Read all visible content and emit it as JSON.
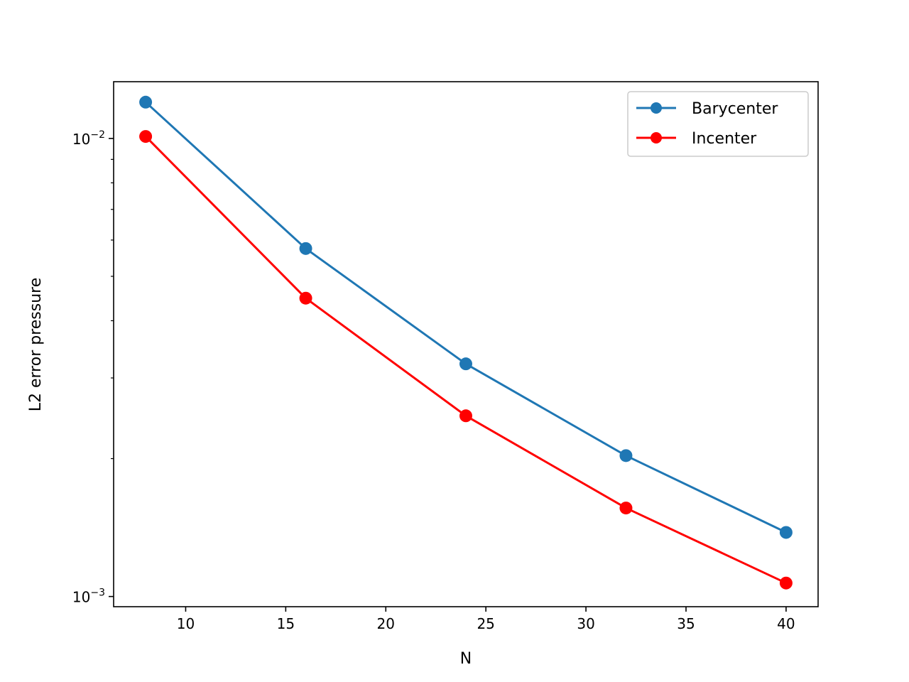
{
  "chart_data": {
    "type": "line",
    "title": "",
    "xlabel": "N",
    "ylabel": "L2 error pressure",
    "x": [
      8,
      16,
      24,
      32,
      40
    ],
    "xlim": [
      6.4,
      41.6
    ],
    "ylim": [
      0.00095,
      0.0133
    ],
    "y_scale": "log",
    "grid": false,
    "legend_position": "top-right",
    "x_ticks": [
      10,
      15,
      20,
      25,
      30,
      35,
      40
    ],
    "y_major_ticks": [
      {
        "value": 0.001,
        "base": "10",
        "exp": "−3"
      },
      {
        "value": 0.01,
        "base": "10",
        "exp": "−2"
      }
    ],
    "y_minor_ticks": [
      0.002,
      0.003,
      0.004,
      0.005,
      0.006,
      0.007,
      0.008,
      0.009
    ],
    "series": [
      {
        "name": "Barycenter",
        "color": "#1f77b4",
        "marker": "circle",
        "values": [
          0.012,
          0.00575,
          0.00322,
          0.00203,
          0.00138
        ]
      },
      {
        "name": "Incenter",
        "color": "#ff0000",
        "marker": "circle",
        "values": [
          0.0101,
          0.00448,
          0.00248,
          0.00156,
          0.00107
        ]
      }
    ]
  }
}
